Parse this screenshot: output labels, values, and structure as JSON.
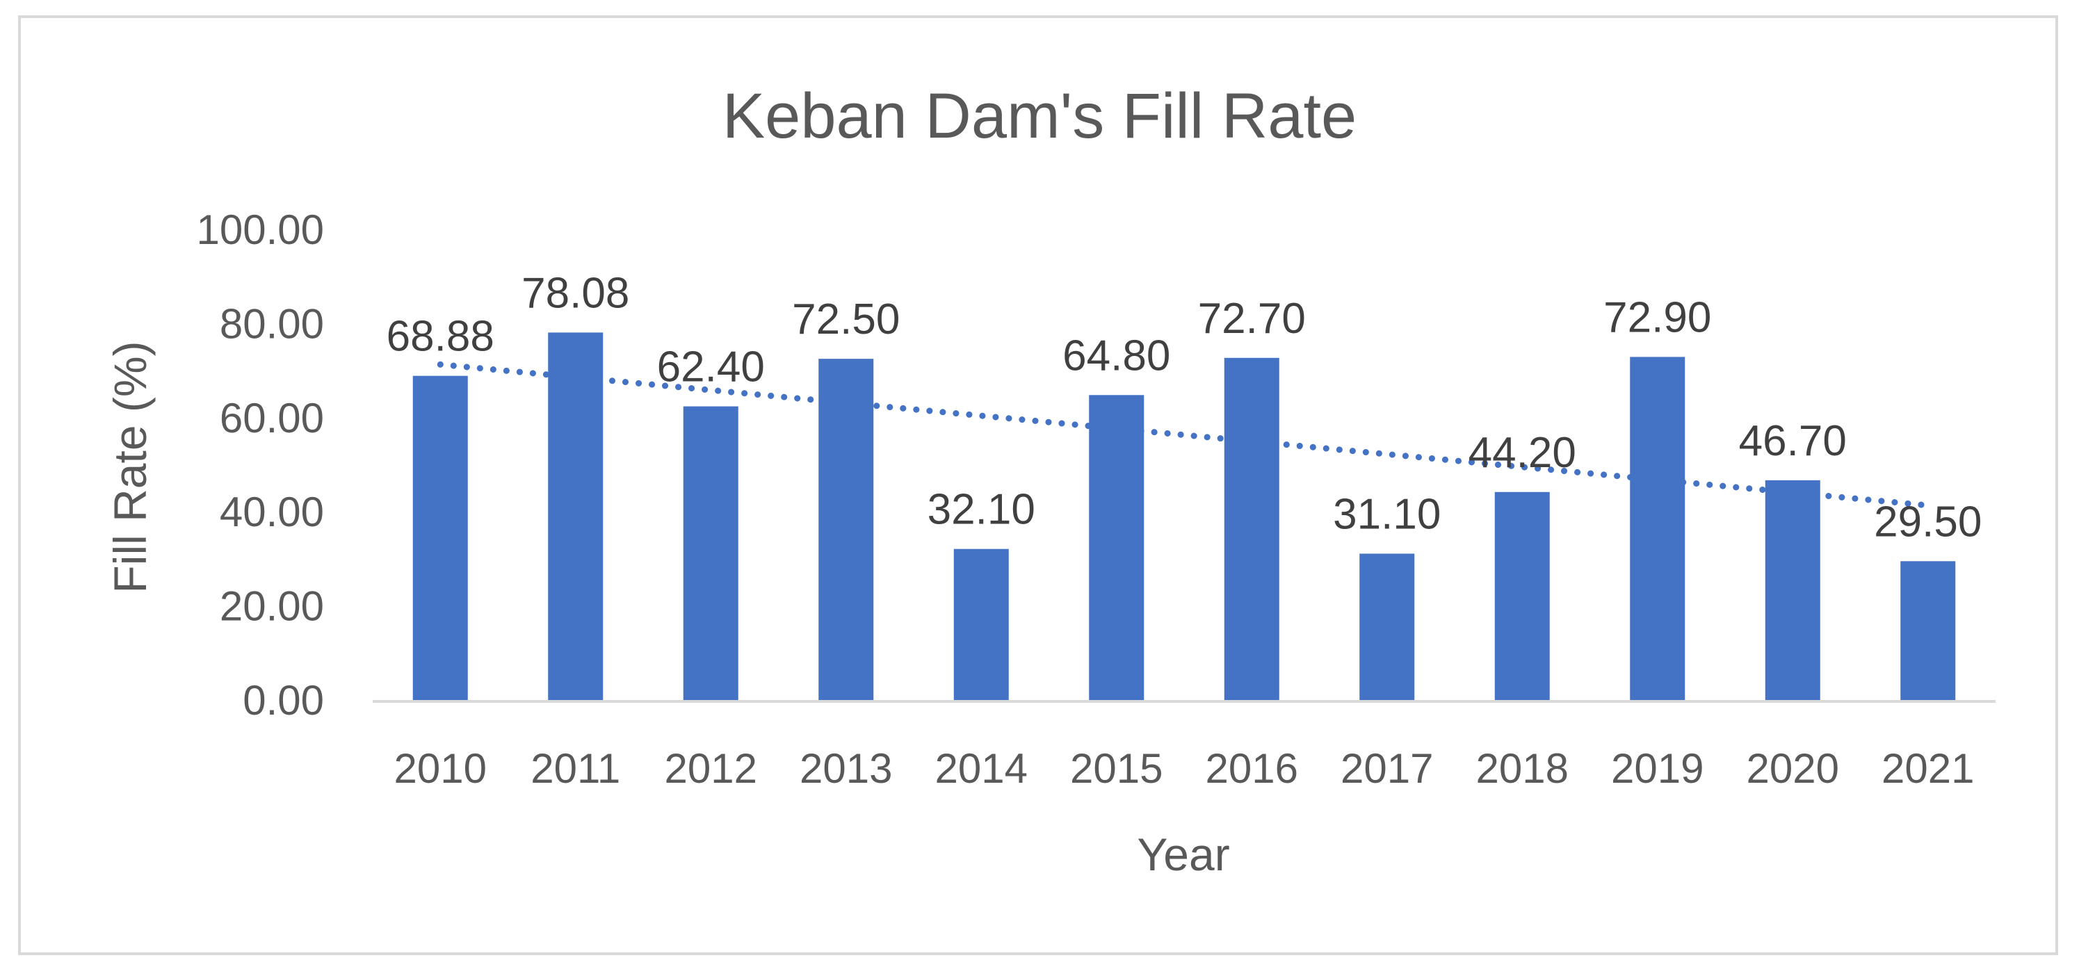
{
  "chart_data": {
    "type": "bar",
    "title": "Keban Dam's Fill Rate",
    "xlabel": "Year",
    "ylabel": "Fill Rate (%)",
    "categories": [
      "2010",
      "2011",
      "2012",
      "2013",
      "2014",
      "2015",
      "2016",
      "2017",
      "2018",
      "2019",
      "2020",
      "2021"
    ],
    "values": [
      68.88,
      78.08,
      62.4,
      72.5,
      32.1,
      64.8,
      72.7,
      31.1,
      44.2,
      72.9,
      46.7,
      29.5
    ],
    "data_labels": [
      "68.88",
      "78.08",
      "62.40",
      "72.50",
      "32.10",
      "64.80",
      "72.70",
      "31.10",
      "44.20",
      "72.90",
      "46.70",
      "29.50"
    ],
    "ylim": [
      0,
      100
    ],
    "yticks": [
      0,
      20,
      40,
      60,
      80,
      100
    ],
    "ytick_labels": [
      "0.00",
      "20.00",
      "40.00",
      "60.00",
      "80.00",
      "100.00"
    ],
    "grid": false,
    "legend": "none",
    "trendline": {
      "type": "linear",
      "style": "dotted"
    },
    "colors": {
      "bar": "#4472c4",
      "trendline": "#4472c4",
      "text": "#595959",
      "axis": "#d9d9d9",
      "frame": "#d9d9d9"
    }
  }
}
